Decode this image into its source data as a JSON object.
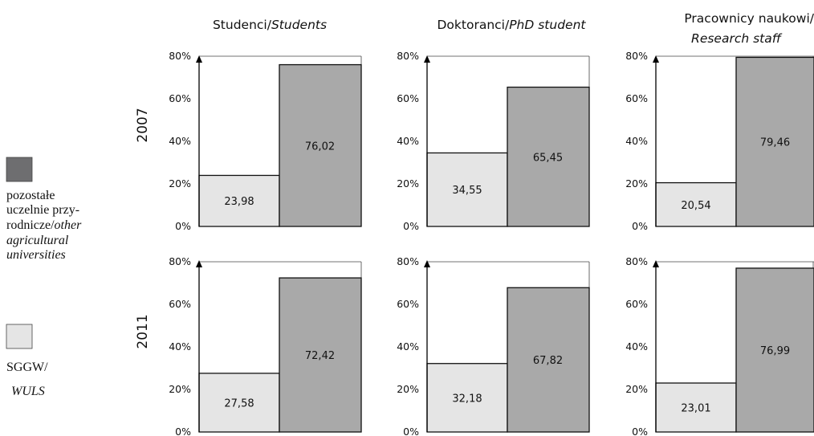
{
  "chart_data": {
    "type": "bar",
    "column_titles": [
      {
        "plain": "Studenci/",
        "italic": "Students"
      },
      {
        "plain": "Doktoranci/",
        "italic": "PhD student"
      },
      {
        "plain": "Pracownicy naukowi/",
        "italic": "Research staff"
      }
    ],
    "row_labels": [
      "2007",
      "2011"
    ],
    "yticks": [
      "0%",
      "20%",
      "40%",
      "60%",
      "80%"
    ],
    "ylim": [
      0,
      80
    ],
    "legend": {
      "placement": "left",
      "items": [
        {
          "key": "other",
          "color": "#a9a9a9",
          "swatch": "#6e6e70",
          "lines": [
            {
              "text": "pozostałe",
              "italic": false
            },
            {
              "text": "uczelnie przy-",
              "italic": false
            },
            {
              "text": "rodnicze/",
              "italic": false,
              "tail": "other"
            },
            {
              "text": "agricultural",
              "italic": true
            },
            {
              "text": "universities",
              "italic": true
            }
          ]
        },
        {
          "key": "sggw",
          "color": "#e5e5e5",
          "swatch": "#e5e5e5",
          "lines": [
            {
              "text": "SGGW/",
              "italic": false
            },
            {
              "text": "WULS",
              "italic": true
            }
          ]
        }
      ]
    },
    "panels": [
      {
        "row": 0,
        "col": 0,
        "sggw": 23.98,
        "sggw_label": "23,98",
        "other": 76.02,
        "other_label": "76,02"
      },
      {
        "row": 0,
        "col": 1,
        "sggw": 34.55,
        "sggw_label": "34,55",
        "other": 65.45,
        "other_label": "65,45"
      },
      {
        "row": 0,
        "col": 2,
        "sggw": 20.54,
        "sggw_label": "20,54",
        "other": 79.46,
        "other_label": "79,46"
      },
      {
        "row": 1,
        "col": 0,
        "sggw": 27.58,
        "sggw_label": "27,58",
        "other": 72.42,
        "other_label": "72,42"
      },
      {
        "row": 1,
        "col": 1,
        "sggw": 32.18,
        "sggw_label": "32,18",
        "other": 67.82,
        "other_label": "67,82"
      },
      {
        "row": 1,
        "col": 2,
        "sggw": 23.01,
        "sggw_label": "23,01",
        "other": 76.99,
        "other_label": "76,99"
      }
    ]
  }
}
